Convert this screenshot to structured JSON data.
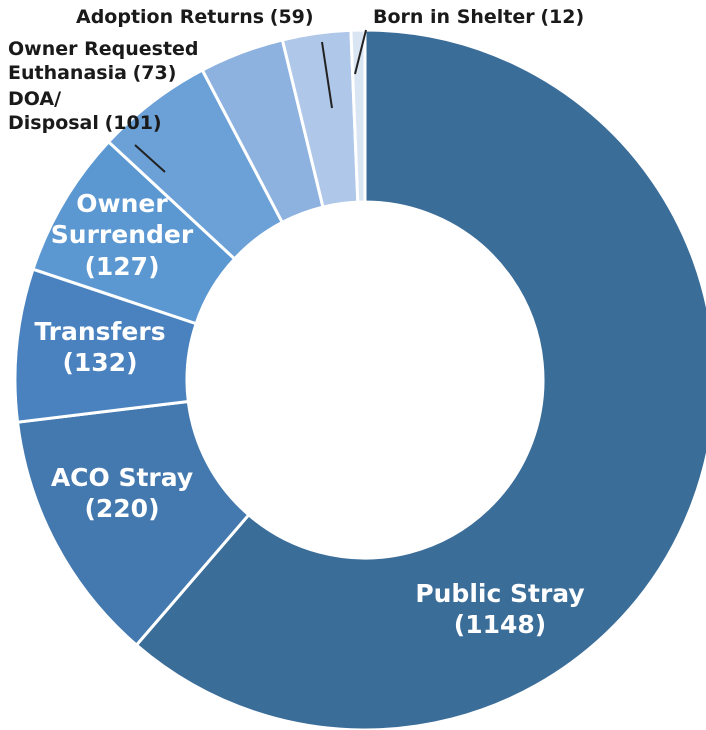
{
  "chart_data": {
    "type": "donut",
    "categories": [
      "Public Stray",
      "ACO Stray",
      "Transfers",
      "Owner\nSurrender",
      "DOA/\nDisposal",
      "Owner Requested\nEuthanasia",
      "Adoption Returns",
      "Born in Shelter"
    ],
    "values": [
      1148,
      220,
      132,
      127,
      101,
      73,
      59,
      12
    ],
    "value_labels": [
      "(1148)",
      "(220)",
      "(132)",
      "(127)",
      "(101)",
      "(73)",
      "(59)",
      "(12)"
    ],
    "colors": [
      "#3b6d99",
      "#4479af",
      "#4a82bf",
      "#5b97d1",
      "#6ca1d8",
      "#8db2df",
      "#afc7e8",
      "#d9e5f3"
    ]
  }
}
